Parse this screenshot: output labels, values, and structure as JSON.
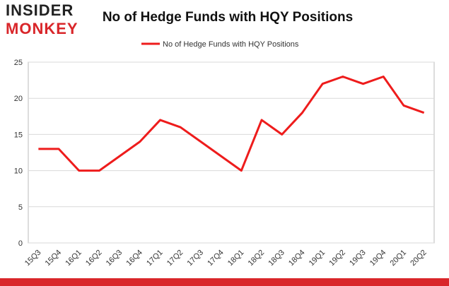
{
  "logo": {
    "line1": "INSIDER",
    "line2": "MONKEY"
  },
  "chart_data": {
    "type": "line",
    "title": "No of Hedge Funds with HQY Positions",
    "categories": [
      "15Q3",
      "15Q4",
      "16Q1",
      "16Q2",
      "16Q3",
      "16Q4",
      "17Q1",
      "17Q2",
      "17Q3",
      "17Q4",
      "18Q1",
      "18Q2",
      "18Q3",
      "18Q4",
      "19Q1",
      "19Q2",
      "19Q3",
      "19Q4",
      "20Q1",
      "20Q2"
    ],
    "series": [
      {
        "name": "No of Hedge Funds with HQY Positions",
        "color": "#ee1c1c",
        "values": [
          13,
          13,
          10,
          10,
          12,
          14,
          17,
          16,
          14,
          12,
          10,
          17,
          15,
          18,
          22,
          23,
          22,
          23,
          19,
          18
        ]
      }
    ],
    "ylim": [
      0,
      25
    ],
    "yticks": [
      0,
      5,
      10,
      15,
      20,
      25
    ],
    "grid": true,
    "legend": "top"
  }
}
